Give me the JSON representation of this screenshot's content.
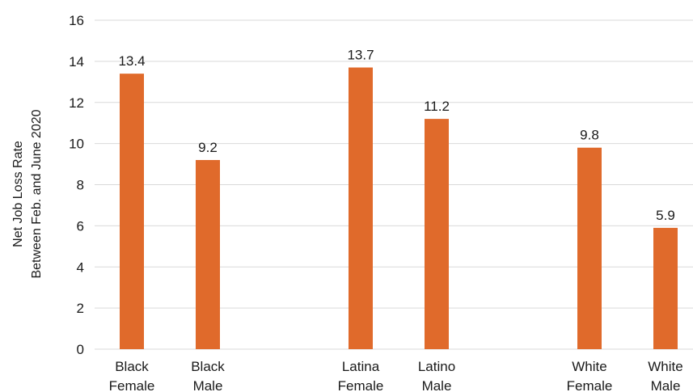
{
  "chart_data": {
    "type": "bar",
    "categories": [
      [
        "Black",
        "Female"
      ],
      [
        "Black",
        "Male"
      ],
      [
        "Latina",
        "Female"
      ],
      [
        "Latino",
        "Male"
      ],
      [
        "White",
        "Female"
      ],
      [
        "White",
        "Male"
      ]
    ],
    "values": [
      13.4,
      9.2,
      13.7,
      11.2,
      9.8,
      5.9
    ],
    "data_labels": [
      "13.4",
      "9.2",
      "13.7",
      "11.2",
      "9.8",
      "5.9"
    ],
    "ylabel_lines": [
      "Net Job Loss Rate",
      "Between Feb. and June 2020"
    ],
    "ylim": [
      0,
      16
    ],
    "yticks": [
      0,
      2,
      4,
      6,
      8,
      10,
      12,
      14,
      16
    ],
    "grid": true,
    "bar_color": "#e06a2b"
  }
}
